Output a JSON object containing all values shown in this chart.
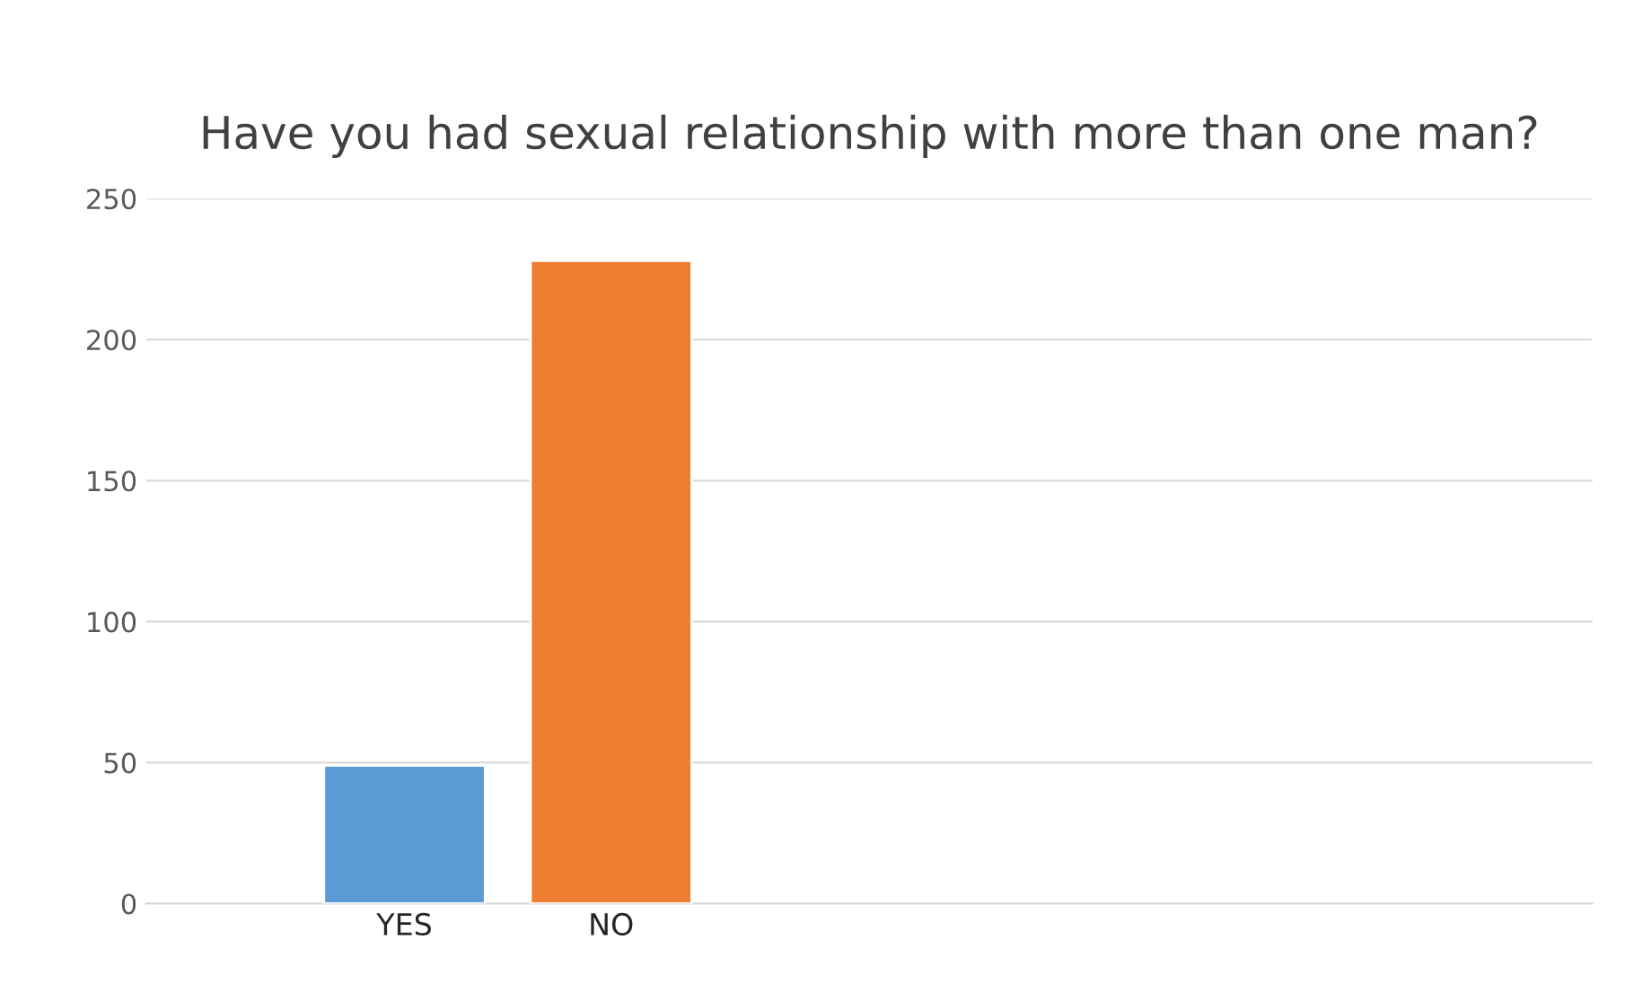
{
  "chart_data": {
    "type": "bar",
    "title": "Have you had sexual relationship with more than one man?",
    "categories": [
      "YES",
      "NO"
    ],
    "values": [
      49,
      228
    ],
    "colors": [
      "#5b9bd5",
      "#ed7d31"
    ],
    "ylim": [
      0,
      250
    ],
    "yticks": [
      0,
      50,
      100,
      150,
      200,
      250
    ],
    "grid": "y"
  }
}
